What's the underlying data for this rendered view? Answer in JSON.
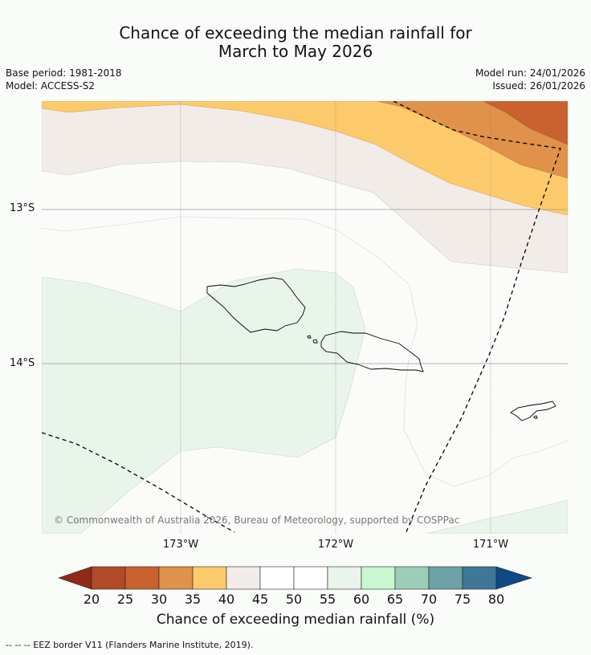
{
  "title": {
    "line1": "Chance of exceeding the median rainfall for",
    "line2": "March to May 2026"
  },
  "meta": {
    "base_period": "Base period: 1981-2018",
    "model": "Model: ACCESS-S2",
    "model_run": "Model run: 24/01/2026",
    "issued": "Issued: 26/01/2026"
  },
  "map": {
    "latitude_labels": [
      "13°S",
      "14°S"
    ],
    "longitude_labels": [
      "173°W",
      "172°W",
      "171°W"
    ],
    "copyright": "© Commonwealth of Australia 2026, Bureau of Meteorology, supported by COSPPac",
    "colors": {
      "c30_35": "#e0914a",
      "c25_30": "#c9622f",
      "c35_40": "#fdca6b",
      "c40_45": "#f1ece7",
      "c45_55": "#fbfcfa",
      "c55_60": "#e9f4ea",
      "coast": "#000000",
      "eez": "#000000"
    }
  },
  "colorbar": {
    "ticks": [
      "20",
      "25",
      "30",
      "35",
      "40",
      "45",
      "50",
      "55",
      "60",
      "65",
      "70",
      "75",
      "80"
    ],
    "colors": [
      "#8f2a16",
      "#b04a28",
      "#c9622f",
      "#e0914a",
      "#fdca6b",
      "#f1ece7",
      "#ffffff",
      "#ffffff",
      "#e9f4ea",
      "#c9f7cf",
      "#9dcdb9",
      "#6da2a6",
      "#3f7797",
      "#0e4a86"
    ],
    "label": "Chance of exceeding median rainfall (%)"
  },
  "footnote": "--  --  -- EEZ border V11 (Flanders Marine Institute, 2019)."
}
